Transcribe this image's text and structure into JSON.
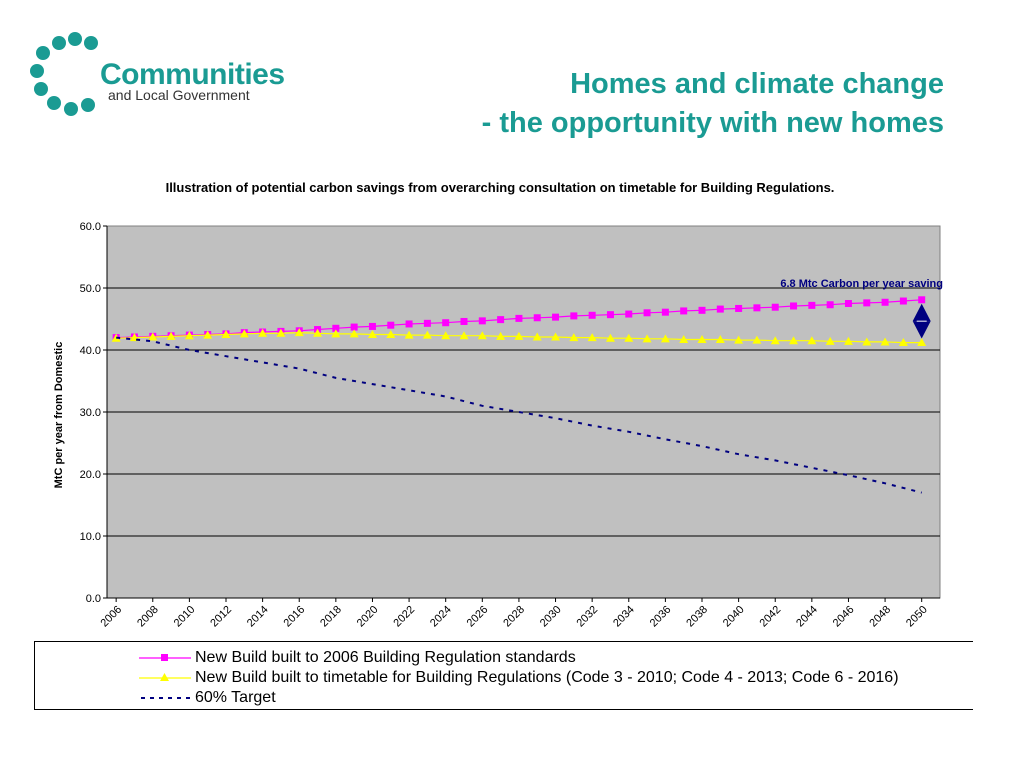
{
  "header": {
    "logo_line1": "Communities",
    "logo_line2": "and Local Government",
    "title_line1": "Homes and climate change",
    "title_line2": "- the opportunity with new homes"
  },
  "colors": {
    "accent": "#1a9b93",
    "plot_bg": "#c0c0c0",
    "series_2006": "#ff00ff",
    "series_timetable": "#ffff00",
    "series_target": "#000080",
    "annotation": "#000080"
  },
  "chart_data": {
    "type": "line",
    "title": "Illustration of potential carbon savings from overarching consultation on timetable for Building Regulations.",
    "xlabel": "",
    "ylabel": "MtC per year from Domestic",
    "ylim": [
      0,
      60
    ],
    "yticks": [
      "0.0",
      "10.0",
      "20.0",
      "30.0",
      "40.0",
      "50.0",
      "60.0"
    ],
    "xticks": [
      "2006",
      "2008",
      "2010",
      "2012",
      "2014",
      "2016",
      "2018",
      "2020",
      "2022",
      "2024",
      "2026",
      "2028",
      "2030",
      "2032",
      "2034",
      "2036",
      "2038",
      "2040",
      "2042",
      "2044",
      "2046",
      "2048",
      "2050"
    ],
    "grid": "horizontal",
    "legend_position": "bottom",
    "annotation": "6.8 Mtc Carbon per year saving",
    "series": [
      {
        "name": "New Build built to 2006 Building Regulation standards",
        "marker": "square",
        "x": [
          2006,
          2007,
          2008,
          2009,
          2010,
          2011,
          2012,
          2013,
          2014,
          2015,
          2016,
          2017,
          2018,
          2019,
          2020,
          2021,
          2022,
          2023,
          2024,
          2025,
          2026,
          2027,
          2028,
          2029,
          2030,
          2031,
          2032,
          2033,
          2034,
          2035,
          2036,
          2037,
          2038,
          2039,
          2040,
          2041,
          2042,
          2043,
          2044,
          2045,
          2046,
          2047,
          2048,
          2049,
          2050
        ],
        "values": [
          42.0,
          42.1,
          42.2,
          42.3,
          42.4,
          42.5,
          42.6,
          42.8,
          42.9,
          43.0,
          43.1,
          43.3,
          43.5,
          43.7,
          43.8,
          44.0,
          44.2,
          44.3,
          44.4,
          44.6,
          44.7,
          44.9,
          45.1,
          45.2,
          45.3,
          45.5,
          45.6,
          45.7,
          45.8,
          46.0,
          46.1,
          46.3,
          46.4,
          46.6,
          46.7,
          46.8,
          46.9,
          47.1,
          47.2,
          47.3,
          47.5,
          47.6,
          47.7,
          47.9,
          48.1
        ]
      },
      {
        "name": "New Build built to timetable for Building Regulations (Code 3 - 2010; Code 4 - 2013; Code 6 - 2016)",
        "marker": "triangle",
        "x": [
          2006,
          2007,
          2008,
          2009,
          2010,
          2011,
          2012,
          2013,
          2014,
          2015,
          2016,
          2017,
          2018,
          2019,
          2020,
          2021,
          2022,
          2023,
          2024,
          2025,
          2026,
          2027,
          2028,
          2029,
          2030,
          2031,
          2032,
          2033,
          2034,
          2035,
          2036,
          2037,
          2038,
          2039,
          2040,
          2041,
          2042,
          2043,
          2044,
          2045,
          2046,
          2047,
          2048,
          2049,
          2050
        ],
        "values": [
          41.9,
          42.0,
          42.1,
          42.2,
          42.3,
          42.4,
          42.5,
          42.6,
          42.7,
          42.7,
          42.8,
          42.7,
          42.6,
          42.6,
          42.5,
          42.5,
          42.4,
          42.4,
          42.3,
          42.3,
          42.3,
          42.2,
          42.2,
          42.1,
          42.1,
          42.0,
          42.0,
          41.9,
          41.9,
          41.8,
          41.8,
          41.7,
          41.7,
          41.7,
          41.6,
          41.6,
          41.5,
          41.5,
          41.5,
          41.4,
          41.4,
          41.3,
          41.3,
          41.2,
          41.2
        ]
      },
      {
        "name": "60% Target",
        "marker": "none",
        "x": [
          2006,
          2008,
          2010,
          2012,
          2014,
          2016,
          2018,
          2020,
          2022,
          2024,
          2026,
          2028,
          2030,
          2032,
          2034,
          2036,
          2038,
          2040,
          2042,
          2044,
          2046,
          2048,
          2050
        ],
        "values": [
          42.0,
          41.4,
          40.0,
          39.0,
          38.0,
          37.0,
          35.5,
          34.5,
          33.5,
          32.5,
          31.0,
          30.0,
          29.0,
          27.8,
          26.8,
          25.6,
          24.5,
          23.2,
          22.2,
          21.0,
          19.8,
          18.5,
          17.0
        ]
      }
    ]
  }
}
